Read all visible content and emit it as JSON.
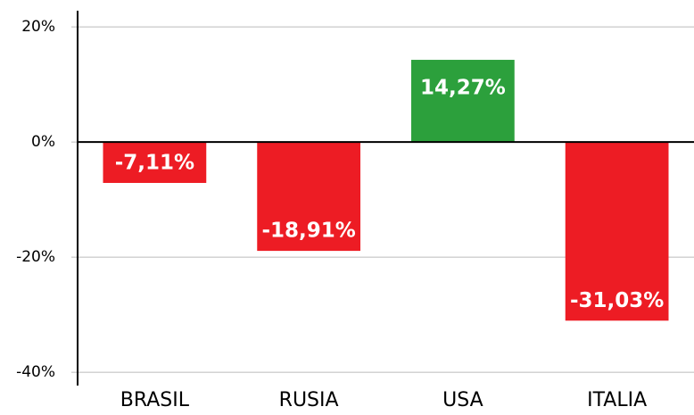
{
  "chart_data": {
    "type": "bar",
    "categories": [
      "BRASIL",
      "RUSIA",
      "USA",
      "ITALIA"
    ],
    "values": [
      -7.11,
      -18.91,
      14.27,
      -31.03
    ],
    "value_labels": [
      "-7,11%",
      "-18,91%",
      "14,27%",
      "-31,03%"
    ],
    "colors": [
      "#ed1c24",
      "#ed1c24",
      "#2ca03c",
      "#ed1c24"
    ],
    "ylim": [
      -42.3,
      22.8
    ],
    "yticks": [
      {
        "value": 20,
        "label": "20%"
      },
      {
        "value": 0,
        "label": "0%"
      },
      {
        "value": -20,
        "label": "-20%"
      },
      {
        "value": -40,
        "label": "-40%"
      }
    ],
    "grid": true
  }
}
